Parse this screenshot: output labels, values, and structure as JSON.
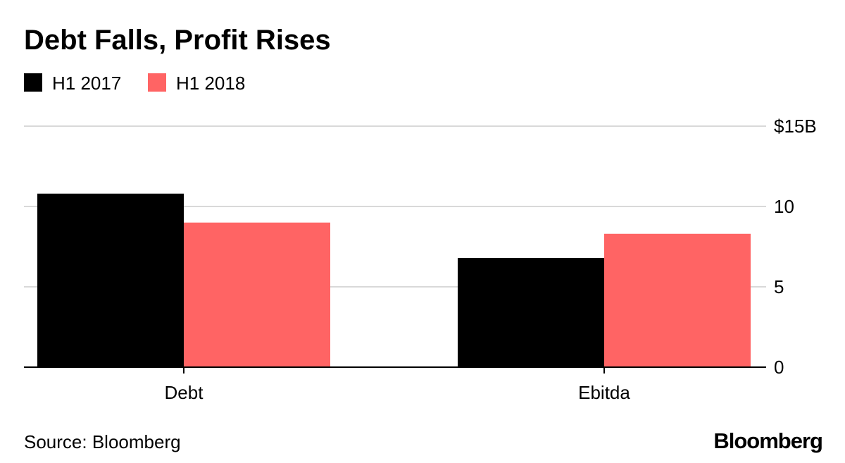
{
  "chart_data": {
    "type": "bar",
    "title": "Debt Falls, Profit Rises",
    "categories": [
      "Debt",
      "Ebitda"
    ],
    "series": [
      {
        "name": "H1 2017",
        "color": "#000000",
        "values": [
          10.8,
          6.8
        ]
      },
      {
        "name": "H1 2018",
        "color": "#ff6464",
        "values": [
          9.0,
          8.3
        ]
      }
    ],
    "y_ticks": [
      {
        "value": 0,
        "label": "0"
      },
      {
        "value": 5,
        "label": "5"
      },
      {
        "value": 10,
        "label": "10"
      },
      {
        "value": 15,
        "label": "$15B"
      }
    ],
    "ylim": [
      0,
      15
    ],
    "xlabel": "",
    "ylabel": "",
    "grid": true,
    "legend_position": "top-left",
    "axis_side": "right"
  },
  "footer": {
    "source": "Source: Bloomberg",
    "brand": "Bloomberg"
  },
  "colors": {
    "gridline": "#d9d9d9",
    "axis": "#000000",
    "background": "#ffffff"
  }
}
